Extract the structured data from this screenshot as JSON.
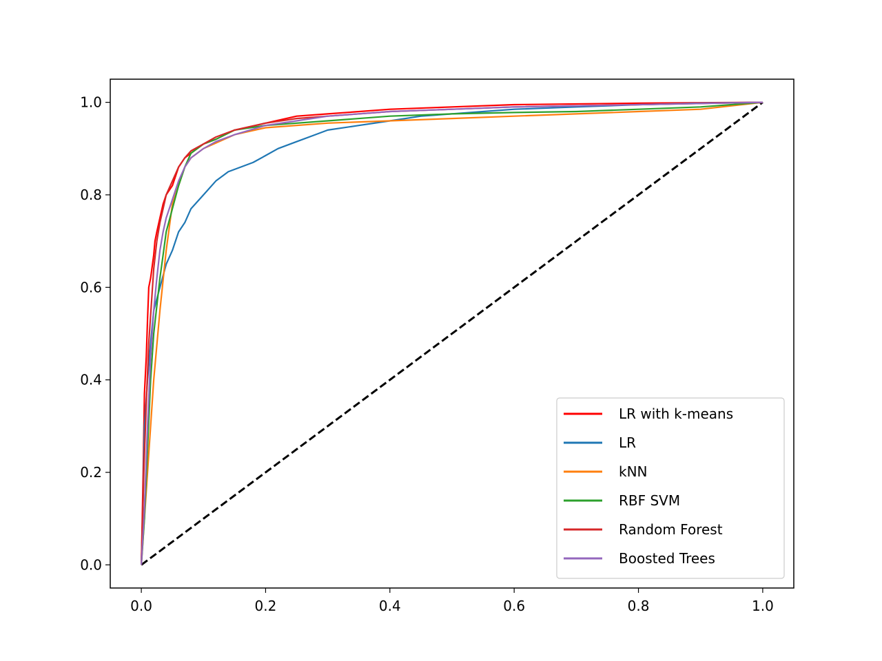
{
  "chart_data": {
    "type": "line",
    "title": "",
    "xlabel": "",
    "ylabel": "",
    "xlim": [
      -0.05,
      1.05
    ],
    "ylim": [
      -0.05,
      1.05
    ],
    "grid": false,
    "legend_position": "lower-right",
    "x_ticks": [
      "0.0",
      "0.2",
      "0.4",
      "0.6",
      "0.8",
      "1.0"
    ],
    "y_ticks": [
      "0.0",
      "0.2",
      "0.4",
      "0.6",
      "0.8",
      "1.0"
    ],
    "series": [
      {
        "name": "LR with k-means",
        "color": "#ff0000",
        "points": [
          [
            0,
            0
          ],
          [
            0.003,
            0.2
          ],
          [
            0.005,
            0.37
          ],
          [
            0.008,
            0.45
          ],
          [
            0.01,
            0.53
          ],
          [
            0.012,
            0.6
          ],
          [
            0.015,
            0.62
          ],
          [
            0.02,
            0.67
          ],
          [
            0.022,
            0.7
          ],
          [
            0.025,
            0.72
          ],
          [
            0.03,
            0.75
          ],
          [
            0.035,
            0.78
          ],
          [
            0.04,
            0.8
          ],
          [
            0.045,
            0.81
          ],
          [
            0.05,
            0.82
          ],
          [
            0.055,
            0.84
          ],
          [
            0.06,
            0.86
          ],
          [
            0.07,
            0.88
          ],
          [
            0.08,
            0.89
          ],
          [
            0.09,
            0.9
          ],
          [
            0.1,
            0.91
          ],
          [
            0.12,
            0.92
          ],
          [
            0.15,
            0.94
          ],
          [
            0.2,
            0.955
          ],
          [
            0.25,
            0.97
          ],
          [
            0.3,
            0.975
          ],
          [
            0.4,
            0.985
          ],
          [
            0.5,
            0.99
          ],
          [
            0.6,
            0.995
          ],
          [
            0.8,
            0.998
          ],
          [
            1,
            1
          ]
        ]
      },
      {
        "name": "LR",
        "color": "#1f77b4",
        "points": [
          [
            0,
            0
          ],
          [
            0.003,
            0.15
          ],
          [
            0.005,
            0.3
          ],
          [
            0.01,
            0.4
          ],
          [
            0.015,
            0.48
          ],
          [
            0.02,
            0.55
          ],
          [
            0.03,
            0.6
          ],
          [
            0.04,
            0.65
          ],
          [
            0.05,
            0.68
          ],
          [
            0.06,
            0.72
          ],
          [
            0.07,
            0.74
          ],
          [
            0.08,
            0.77
          ],
          [
            0.1,
            0.8
          ],
          [
            0.12,
            0.83
          ],
          [
            0.14,
            0.85
          ],
          [
            0.16,
            0.86
          ],
          [
            0.18,
            0.87
          ],
          [
            0.2,
            0.885
          ],
          [
            0.22,
            0.9
          ],
          [
            0.25,
            0.915
          ],
          [
            0.28,
            0.93
          ],
          [
            0.3,
            0.94
          ],
          [
            0.35,
            0.95
          ],
          [
            0.4,
            0.96
          ],
          [
            0.45,
            0.97
          ],
          [
            0.5,
            0.975
          ],
          [
            0.55,
            0.98
          ],
          [
            0.6,
            0.985
          ],
          [
            0.7,
            0.99
          ],
          [
            0.8,
            0.995
          ],
          [
            0.9,
            0.998
          ],
          [
            1,
            1
          ]
        ]
      },
      {
        "name": "kNN",
        "color": "#ff7f0e",
        "points": [
          [
            0,
            0
          ],
          [
            0.01,
            0.2
          ],
          [
            0.02,
            0.4
          ],
          [
            0.03,
            0.55
          ],
          [
            0.04,
            0.68
          ],
          [
            0.05,
            0.78
          ],
          [
            0.06,
            0.82
          ],
          [
            0.07,
            0.86
          ],
          [
            0.08,
            0.88
          ],
          [
            0.1,
            0.9
          ],
          [
            0.15,
            0.93
          ],
          [
            0.2,
            0.945
          ],
          [
            0.3,
            0.955
          ],
          [
            0.4,
            0.96
          ],
          [
            0.5,
            0.965
          ],
          [
            0.6,
            0.97
          ],
          [
            0.7,
            0.975
          ],
          [
            0.8,
            0.98
          ],
          [
            0.9,
            0.985
          ],
          [
            1,
            1
          ]
        ]
      },
      {
        "name": "RBF SVM",
        "color": "#2ca02c",
        "points": [
          [
            0,
            0
          ],
          [
            0.005,
            0.1
          ],
          [
            0.01,
            0.25
          ],
          [
            0.015,
            0.4
          ],
          [
            0.02,
            0.5
          ],
          [
            0.025,
            0.56
          ],
          [
            0.03,
            0.62
          ],
          [
            0.035,
            0.67
          ],
          [
            0.04,
            0.72
          ],
          [
            0.05,
            0.77
          ],
          [
            0.06,
            0.82
          ],
          [
            0.07,
            0.86
          ],
          [
            0.08,
            0.89
          ],
          [
            0.1,
            0.91
          ],
          [
            0.12,
            0.92
          ],
          [
            0.15,
            0.94
          ],
          [
            0.2,
            0.95
          ],
          [
            0.3,
            0.96
          ],
          [
            0.4,
            0.97
          ],
          [
            0.5,
            0.975
          ],
          [
            0.6,
            0.978
          ],
          [
            0.7,
            0.98
          ],
          [
            0.8,
            0.985
          ],
          [
            0.9,
            0.99
          ],
          [
            1,
            1
          ]
        ]
      },
      {
        "name": "Random Forest",
        "color": "#d62728",
        "points": [
          [
            0,
            0
          ],
          [
            0.004,
            0.2
          ],
          [
            0.008,
            0.35
          ],
          [
            0.012,
            0.48
          ],
          [
            0.016,
            0.56
          ],
          [
            0.02,
            0.64
          ],
          [
            0.025,
            0.7
          ],
          [
            0.03,
            0.74
          ],
          [
            0.035,
            0.77
          ],
          [
            0.04,
            0.8
          ],
          [
            0.05,
            0.83
          ],
          [
            0.06,
            0.86
          ],
          [
            0.07,
            0.88
          ],
          [
            0.08,
            0.895
          ],
          [
            0.1,
            0.91
          ],
          [
            0.12,
            0.925
          ],
          [
            0.15,
            0.94
          ],
          [
            0.2,
            0.955
          ],
          [
            0.25,
            0.965
          ],
          [
            0.3,
            0.97
          ],
          [
            0.4,
            0.98
          ],
          [
            0.5,
            0.985
          ],
          [
            0.6,
            0.99
          ],
          [
            0.8,
            0.995
          ],
          [
            1,
            1
          ]
        ]
      },
      {
        "name": "Boosted Trees",
        "color": "#9467bd",
        "points": [
          [
            0,
            0
          ],
          [
            0.005,
            0.12
          ],
          [
            0.01,
            0.3
          ],
          [
            0.015,
            0.45
          ],
          [
            0.02,
            0.55
          ],
          [
            0.025,
            0.62
          ],
          [
            0.03,
            0.68
          ],
          [
            0.035,
            0.72
          ],
          [
            0.04,
            0.75
          ],
          [
            0.05,
            0.79
          ],
          [
            0.06,
            0.83
          ],
          [
            0.07,
            0.86
          ],
          [
            0.08,
            0.88
          ],
          [
            0.1,
            0.9
          ],
          [
            0.12,
            0.915
          ],
          [
            0.15,
            0.93
          ],
          [
            0.2,
            0.95
          ],
          [
            0.25,
            0.96
          ],
          [
            0.3,
            0.97
          ],
          [
            0.4,
            0.98
          ],
          [
            0.5,
            0.985
          ],
          [
            0.6,
            0.99
          ],
          [
            0.8,
            0.995
          ],
          [
            1,
            1
          ]
        ]
      }
    ],
    "reference_line": {
      "color": "#000000",
      "style": "dashed",
      "points": [
        [
          0,
          0
        ],
        [
          1,
          1
        ]
      ]
    }
  }
}
